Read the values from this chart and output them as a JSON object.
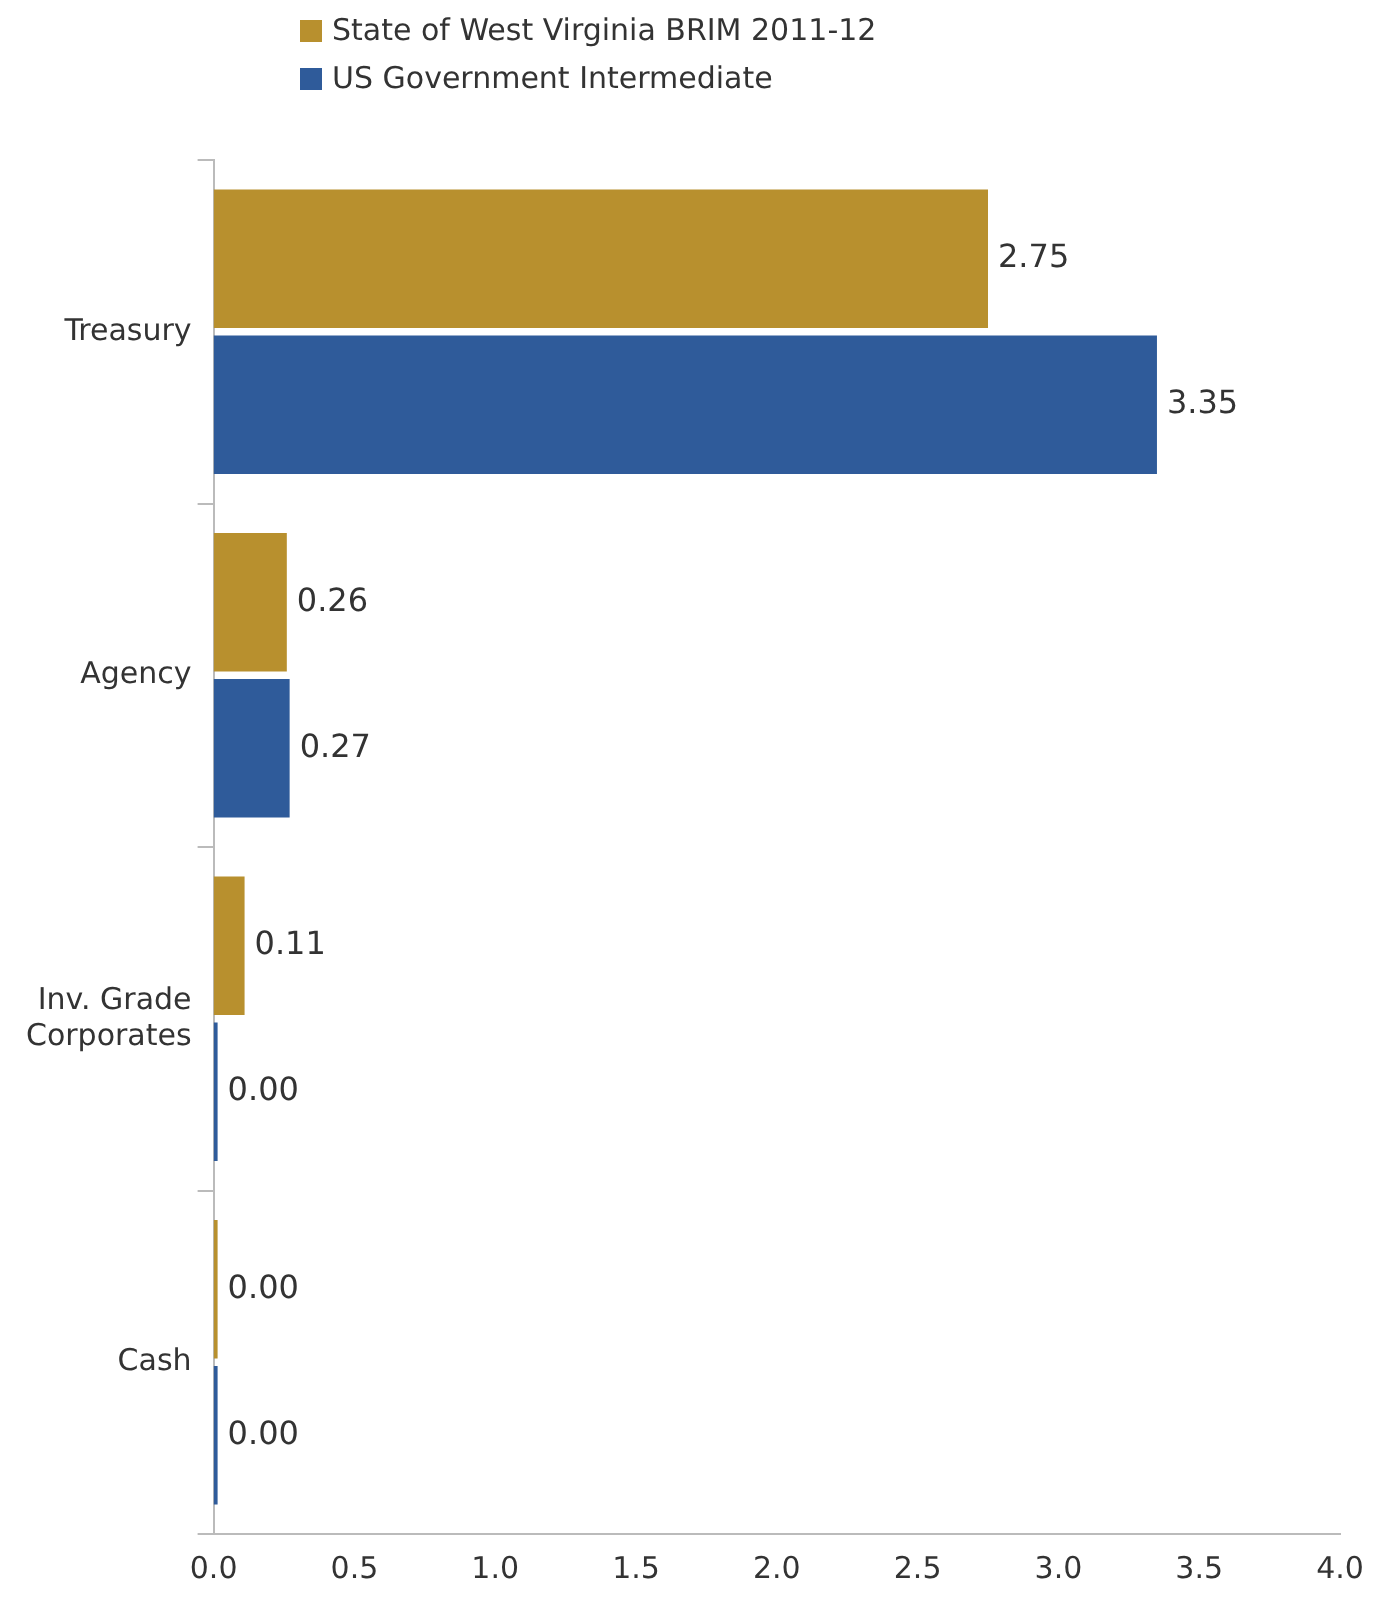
{
  "chart_data": {
    "type": "bar",
    "orientation": "horizontal",
    "categories": [
      "Treasury",
      "Agency",
      "Inv. Grade Corporates",
      "Cash"
    ],
    "series": [
      {
        "name": "State of West Virginia BRIM 2011-12",
        "color": "#b8902e",
        "values": [
          2.75,
          0.26,
          0.11,
          0
        ],
        "value_labels": [
          "2.75",
          "0.26",
          "0.11",
          "0.00"
        ]
      },
      {
        "name": "US Government Intermediate",
        "color": "#2f5b9a",
        "values": [
          3.35,
          0.27,
          0,
          0
        ],
        "value_labels": [
          "3.35",
          "0.27",
          "0.00",
          "0.00"
        ]
      }
    ],
    "xlim": [
      0,
      4
    ],
    "xticks": [
      {
        "value": 0,
        "label": "0.0"
      },
      {
        "value": 0.5,
        "label": "0.5"
      },
      {
        "value": 1,
        "label": "1.0"
      },
      {
        "value": 1.5,
        "label": "1.5"
      },
      {
        "value": 2,
        "label": "2.0"
      },
      {
        "value": 2.5,
        "label": "2.5"
      },
      {
        "value": 3,
        "label": "3.0"
      },
      {
        "value": 3.5,
        "label": "3.5"
      },
      {
        "value": 4,
        "label": "4.0"
      }
    ],
    "grid": false,
    "legend": "top"
  }
}
